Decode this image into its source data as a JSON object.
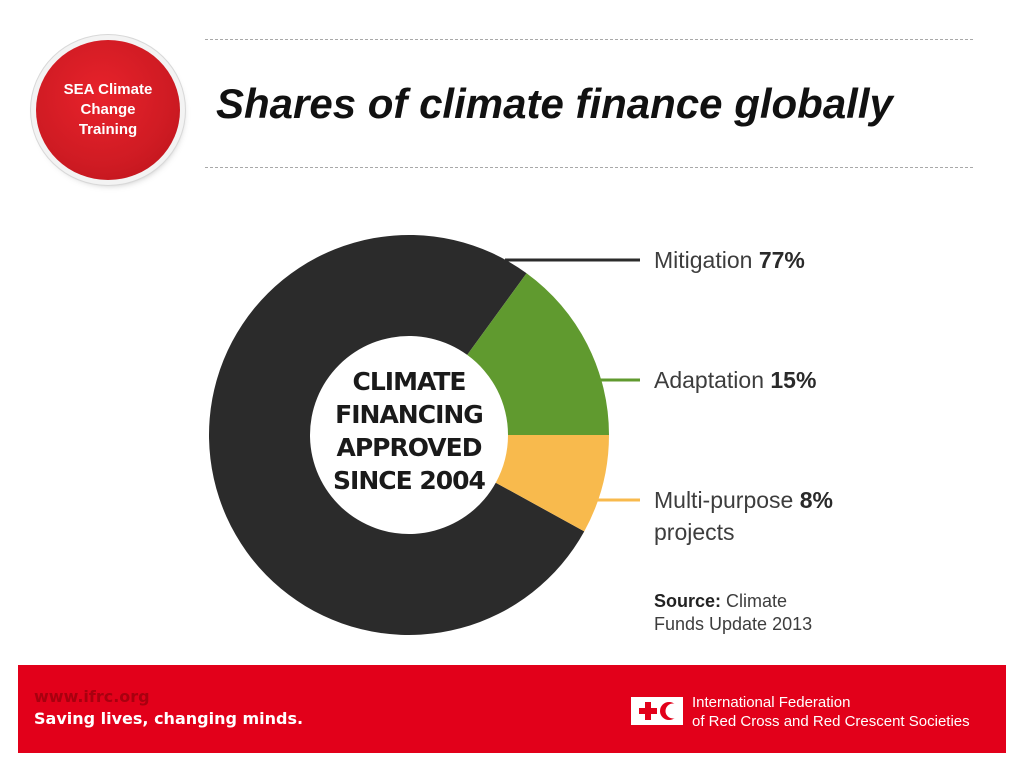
{
  "badge": {
    "text": "SEA Climate\nChange\nTraining"
  },
  "slide": {
    "title": "Shares of climate finance globally"
  },
  "chart_data": {
    "type": "pie",
    "style": "donut",
    "center_label_lines": [
      "CLIMATE",
      "FINANCING",
      "APPROVED",
      "SINCE 2004"
    ],
    "categories": [
      {
        "label": "Mitigation",
        "value": 77,
        "percent_label": "77%",
        "color": "#2b2b2b"
      },
      {
        "label": "Adaptation",
        "value": 15,
        "percent_label": "15%",
        "color": "#609a2f"
      },
      {
        "label": "Multi-purpose",
        "label_line2": "projects",
        "value": 8,
        "percent_label": "8%",
        "color": "#f8ba4d"
      }
    ],
    "source_label": "Source:",
    "source_text_line1": "Climate",
    "source_text_line2": "Funds Update 2013"
  },
  "footer": {
    "url": "www.ifrc.org",
    "slogan": "Saving lives, changing minds.",
    "org_line1": "International Federation",
    "org_line2": "of Red Cross and Red Crescent Societies",
    "emblem_icon": "red-cross-red-crescent-icon",
    "emblem_color": "#e2001a"
  }
}
